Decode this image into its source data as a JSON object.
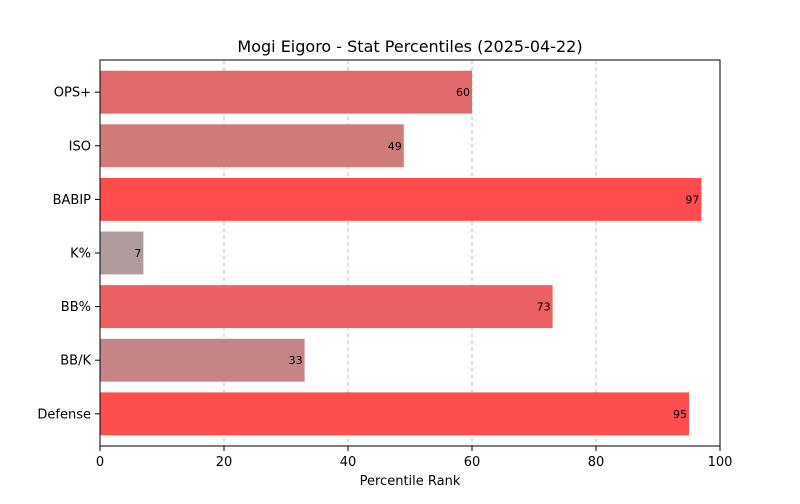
{
  "chart_data": {
    "type": "bar",
    "orientation": "horizontal",
    "title": "Mogi Eigoro - Stat Percentiles (2025-04-22)",
    "xlabel": "Percentile Rank",
    "ylabel": "",
    "xlim": [
      0,
      100
    ],
    "xticks": [
      "0",
      "20",
      "40",
      "60",
      "80",
      "100"
    ],
    "grid": "x-axis dashed vertical lines",
    "legend": "none",
    "categories": [
      "OPS+",
      "ISO",
      "BABIP",
      "K%",
      "BB%",
      "BB/K",
      "Defense"
    ],
    "values": [
      60,
      49,
      97,
      7,
      73,
      33,
      95
    ],
    "bar_colors": [
      "#e0696b",
      "#cf7b79",
      "#fe4c4e",
      "#b09c9d",
      "#eb6062",
      "#c58587",
      "#fd4d4e"
    ],
    "data_labels": [
      "60",
      "49",
      "97",
      "7",
      "73",
      "33",
      "95"
    ]
  }
}
